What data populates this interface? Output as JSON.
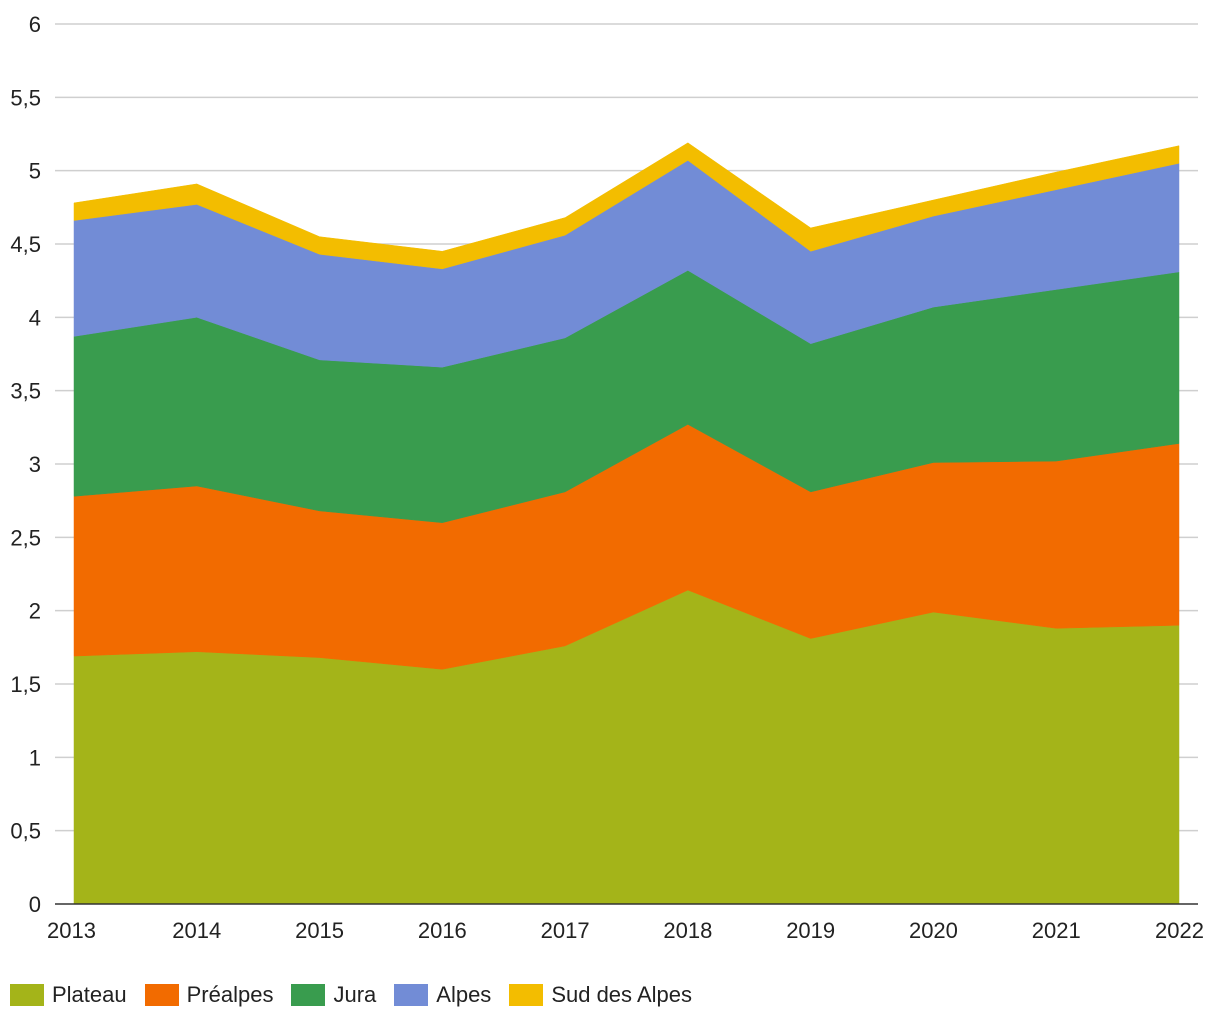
{
  "chart_data": {
    "type": "area",
    "stacked": true,
    "categories": [
      "2013",
      "2014",
      "2015",
      "2016",
      "2017",
      "2018",
      "2019",
      "2020",
      "2021",
      "2022"
    ],
    "ylim": [
      0,
      6
    ],
    "ytick_values": [
      0,
      0.5,
      1,
      1.5,
      2,
      2.5,
      3,
      3.5,
      4,
      4.5,
      5,
      5.5,
      6
    ],
    "ytick_labels": [
      "0",
      "0,5",
      "1",
      "1,5",
      "2",
      "2,5",
      "3",
      "3,5",
      "4",
      "4,5",
      "5",
      "5,5",
      "6"
    ],
    "grid": true,
    "legend_position": "bottom-left",
    "series": [
      {
        "name": "Plateau",
        "color": "#a4b419",
        "values": [
          1.69,
          1.72,
          1.68,
          1.6,
          1.76,
          2.14,
          1.81,
          1.99,
          1.88,
          1.9
        ]
      },
      {
        "name": "Préalpes",
        "color": "#f26b00",
        "values": [
          1.09,
          1.13,
          1.0,
          1.0,
          1.05,
          1.13,
          1.0,
          1.02,
          1.14,
          1.24
        ]
      },
      {
        "name": "Jura",
        "color": "#399c4e",
        "values": [
          1.09,
          1.15,
          1.03,
          1.06,
          1.05,
          1.05,
          1.01,
          1.06,
          1.17,
          1.17
        ]
      },
      {
        "name": "Alpes",
        "color": "#728cd6",
        "values": [
          0.79,
          0.77,
          0.72,
          0.67,
          0.7,
          0.75,
          0.63,
          0.62,
          0.68,
          0.74
        ]
      },
      {
        "name": "Sud des Alpes",
        "color": "#f3bd00",
        "values": [
          0.12,
          0.14,
          0.12,
          0.12,
          0.12,
          0.12,
          0.16,
          0.11,
          0.12,
          0.12
        ]
      }
    ]
  }
}
